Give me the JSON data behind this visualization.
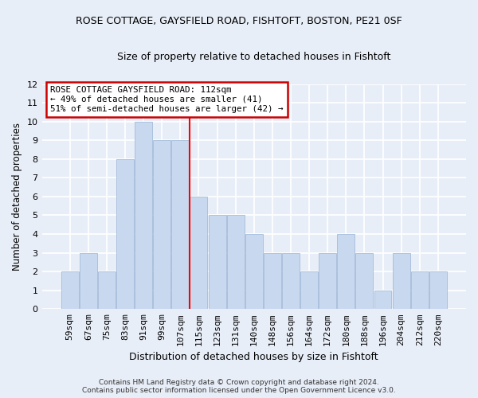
{
  "title": "ROSE COTTAGE, GAYSFIELD ROAD, FISHTOFT, BOSTON, PE21 0SF",
  "subtitle": "Size of property relative to detached houses in Fishtoft",
  "xlabel": "Distribution of detached houses by size in Fishtoft",
  "ylabel": "Number of detached properties",
  "categories": [
    "59sqm",
    "67sqm",
    "75sqm",
    "83sqm",
    "91sqm",
    "99sqm",
    "107sqm",
    "115sqm",
    "123sqm",
    "131sqm",
    "140sqm",
    "148sqm",
    "156sqm",
    "164sqm",
    "172sqm",
    "180sqm",
    "188sqm",
    "196sqm",
    "204sqm",
    "212sqm",
    "220sqm"
  ],
  "values": [
    2,
    3,
    2,
    8,
    10,
    9,
    9,
    6,
    5,
    5,
    4,
    3,
    3,
    2,
    3,
    4,
    3,
    1,
    3,
    2,
    2
  ],
  "bar_color": "#c8d8ee",
  "bar_edge_color": "#9ab4d4",
  "ylim": [
    0,
    12
  ],
  "yticks": [
    0,
    1,
    2,
    3,
    4,
    5,
    6,
    7,
    8,
    9,
    10,
    11,
    12
  ],
  "red_line_x": 6.5,
  "annotation_text": "ROSE COTTAGE GAYSFIELD ROAD: 112sqm\n← 49% of detached houses are smaller (41)\n51% of semi-detached houses are larger (42) →",
  "annotation_box_color": "#ffffff",
  "annotation_border_color": "#cc0000",
  "footer": "Contains HM Land Registry data © Crown copyright and database right 2024.\nContains public sector information licensed under the Open Government Licence v3.0.",
  "background_color": "#e8eef8",
  "plot_bg_color": "#e8eef8",
  "grid_color": "#ffffff"
}
